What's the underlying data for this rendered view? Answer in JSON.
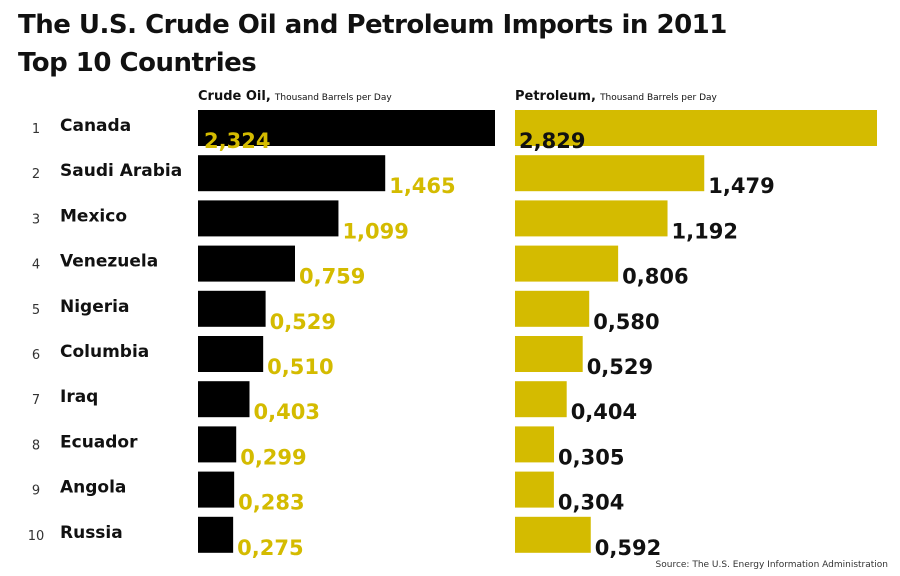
{
  "title": "The U.S. Crude Oil and Petroleum Imports in 2011",
  "subtitle": "Top 10 Countries",
  "colors": {
    "crude": "#000000",
    "petroleum": "#d4bb00",
    "text": "#111111"
  },
  "panels": {
    "crude": {
      "name": "Crude Oil,",
      "unit": "Thousand Barrels per Day"
    },
    "petroleum": {
      "name": "Petroleum,",
      "unit": "Thousand Barrels per Day"
    }
  },
  "source": "Source: The U.S. Energy Information Administration",
  "chart_data": {
    "type": "bar",
    "orientation": "horizontal",
    "title": "The U.S. Crude Oil and Petroleum Imports in 2011",
    "subtitle": "Top 10 Countries",
    "ranks": [
      "1",
      "2",
      "3",
      "4",
      "5",
      "6",
      "7",
      "8",
      "9",
      "10"
    ],
    "categories": [
      "Canada",
      "Saudi Arabia",
      "Mexico",
      "Venezuela",
      "Nigeria",
      "Columbia",
      "Iraq",
      "Ecuador",
      "Angola",
      "Russia"
    ],
    "series": [
      {
        "name": "Crude Oil",
        "unit": "Thousand Barrels per Day",
        "values": [
          2324,
          1465,
          1099,
          759,
          529,
          510,
          403,
          299,
          283,
          275
        ],
        "labels": [
          "2,324",
          "1,465",
          "1,099",
          "0,759",
          "0,529",
          "0,510",
          "0,403",
          "0,299",
          "0,283",
          "0,275"
        ]
      },
      {
        "name": "Petroleum",
        "unit": "Thousand Barrels per Day",
        "values": [
          2829,
          1479,
          1192,
          806,
          580,
          529,
          404,
          305,
          304,
          592
        ],
        "labels": [
          "2,829",
          "1,479",
          "1,192",
          "0,806",
          "0,580",
          "0,529",
          "0,404",
          "0,305",
          "0,304",
          "0,592"
        ]
      }
    ],
    "grid": false,
    "legend": "none"
  }
}
